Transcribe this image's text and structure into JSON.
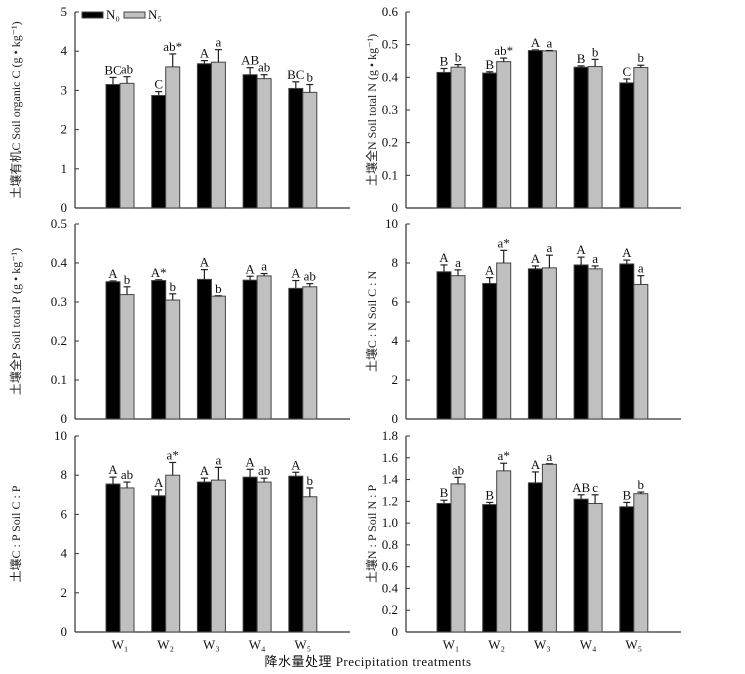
{
  "colors": {
    "N0": "#000000",
    "N5": "#c0c0c0",
    "axis": "#333333"
  },
  "legend": [
    {
      "name": "N₀",
      "color": "#000000"
    },
    {
      "name": "N₅",
      "color": "#c0c0c0"
    }
  ],
  "x_title": "降水量处理 Precipitation treatments",
  "chart_data": [
    {
      "type": "bar",
      "ylabel": "土壤有机C Soil organic C (g • kg⁻¹)",
      "ylim": [
        0,
        5
      ],
      "yticks": [
        "0",
        "1",
        "2",
        "3",
        "4",
        "5"
      ],
      "categories": [
        "W₁",
        "W₂",
        "W₃",
        "W₄",
        "W₅"
      ],
      "series": [
        {
          "name": "N₀",
          "values": [
            3.15,
            2.87,
            3.68,
            3.4,
            3.05
          ],
          "errors": [
            0.18,
            0.1,
            0.08,
            0.18,
            0.17
          ],
          "letters": [
            "BC",
            "C",
            "A",
            "AB",
            "BC"
          ]
        },
        {
          "name": "N₅",
          "values": [
            3.18,
            3.6,
            3.72,
            3.3,
            2.95
          ],
          "errors": [
            0.17,
            0.33,
            0.32,
            0.1,
            0.2
          ],
          "letters": [
            "ab",
            "ab*",
            "a",
            "ab",
            "b"
          ]
        }
      ]
    },
    {
      "type": "bar",
      "ylabel": "土壤全N Soil total N (g • kg⁻¹)",
      "ylim": [
        0,
        0.6
      ],
      "yticks": [
        "0",
        "0.1",
        "0.2",
        "0.3",
        "0.4",
        "0.5",
        "0.6"
      ],
      "categories": [
        "W₁",
        "W₂",
        "W₃",
        "W₄",
        "W₅"
      ],
      "series": [
        {
          "name": "N₀",
          "values": [
            0.415,
            0.413,
            0.482,
            0.431,
            0.383
          ],
          "errors": [
            0.012,
            0.004,
            0.002,
            0.004,
            0.012
          ],
          "letters": [
            "B",
            "B",
            "A",
            "B",
            "C"
          ]
        },
        {
          "name": "N₅",
          "values": [
            0.431,
            0.448,
            0.481,
            0.433,
            0.43
          ],
          "errors": [
            0.008,
            0.011,
            0.001,
            0.022,
            0.007
          ],
          "letters": [
            "b",
            "ab*",
            "a",
            "b",
            "b"
          ]
        }
      ]
    },
    {
      "type": "bar",
      "ylabel": "土壤全P Soil total P (g • kg⁻¹)",
      "ylim": [
        0,
        0.5
      ],
      "yticks": [
        "0",
        "0.1",
        "0.2",
        "0.3",
        "0.4",
        "0.5"
      ],
      "categories": [
        "W₁",
        "W₂",
        "W₃",
        "W₄",
        "W₅"
      ],
      "series": [
        {
          "name": "N₀",
          "values": [
            0.352,
            0.355,
            0.358,
            0.356,
            0.335
          ],
          "errors": [
            0.002,
            0.002,
            0.025,
            0.01,
            0.02
          ],
          "letters": [
            "A",
            "A*",
            "A",
            "A",
            "A"
          ]
        },
        {
          "name": "N₅",
          "values": [
            0.319,
            0.305,
            0.315,
            0.367,
            0.339
          ],
          "errors": [
            0.02,
            0.016,
            0.001,
            0.006,
            0.008
          ],
          "letters": [
            "b",
            "b",
            "b",
            "a",
            "ab"
          ]
        }
      ]
    },
    {
      "type": "bar",
      "ylabel": "土壤C : N Soil C : N",
      "ylim": [
        0,
        10
      ],
      "yticks": [
        "0",
        "2",
        "4",
        "6",
        "8",
        "10"
      ],
      "categories": [
        "W₁",
        "W₂",
        "W₃",
        "W₄",
        "W₅"
      ],
      "series": [
        {
          "name": "N₀",
          "values": [
            7.55,
            6.95,
            7.7,
            7.9,
            7.95
          ],
          "errors": [
            0.35,
            0.3,
            0.15,
            0.4,
            0.2
          ],
          "letters": [
            "A",
            "A",
            "A",
            "A",
            "A"
          ]
        },
        {
          "name": "N₅",
          "values": [
            7.35,
            8.0,
            7.75,
            7.7,
            6.9
          ],
          "errors": [
            0.3,
            0.65,
            0.65,
            0.15,
            0.45
          ],
          "letters": [
            "a",
            "a*",
            "a",
            "a",
            "a"
          ]
        }
      ]
    },
    {
      "type": "bar",
      "ylabel": "土壤C : P  Soil C : P",
      "ylim": [
        0,
        10
      ],
      "yticks": [
        "0",
        "2",
        "4",
        "6",
        "8",
        "10"
      ],
      "categories": [
        "W₁",
        "W₂",
        "W₃",
        "W₄",
        "W₅"
      ],
      "series": [
        {
          "name": "N₀",
          "values": [
            7.55,
            6.95,
            7.65,
            7.9,
            7.95
          ],
          "errors": [
            0.35,
            0.3,
            0.2,
            0.4,
            0.2
          ],
          "letters": [
            "A",
            "A",
            "A",
            "A",
            "A"
          ]
        },
        {
          "name": "N₅",
          "values": [
            7.35,
            8.0,
            7.75,
            7.65,
            6.9
          ],
          "errors": [
            0.3,
            0.65,
            0.65,
            0.2,
            0.45
          ],
          "letters": [
            "ab",
            "a*",
            "a",
            "ab",
            "b"
          ]
        }
      ]
    },
    {
      "type": "bar",
      "ylabel": "土壤N : P Soil N : P",
      "ylim": [
        0,
        1.8
      ],
      "yticks": [
        "0",
        "0.2",
        "0.4",
        "0.6",
        "0.8",
        "1.0",
        "1.2",
        "1.4",
        "1.6",
        "1.8"
      ],
      "categories": [
        "W₁",
        "W₂",
        "W₃",
        "W₄",
        "W₅"
      ],
      "series": [
        {
          "name": "N₀",
          "values": [
            1.18,
            1.17,
            1.37,
            1.22,
            1.15
          ],
          "errors": [
            0.03,
            0.02,
            0.1,
            0.04,
            0.04
          ],
          "letters": [
            "B",
            "B",
            "A",
            "AB",
            "B"
          ]
        },
        {
          "name": "N₅",
          "values": [
            1.36,
            1.48,
            1.54,
            1.18,
            1.27
          ],
          "errors": [
            0.06,
            0.07,
            0.005,
            0.08,
            0.015
          ],
          "letters": [
            "ab",
            "a*",
            "a",
            "c",
            "b"
          ]
        }
      ]
    }
  ]
}
